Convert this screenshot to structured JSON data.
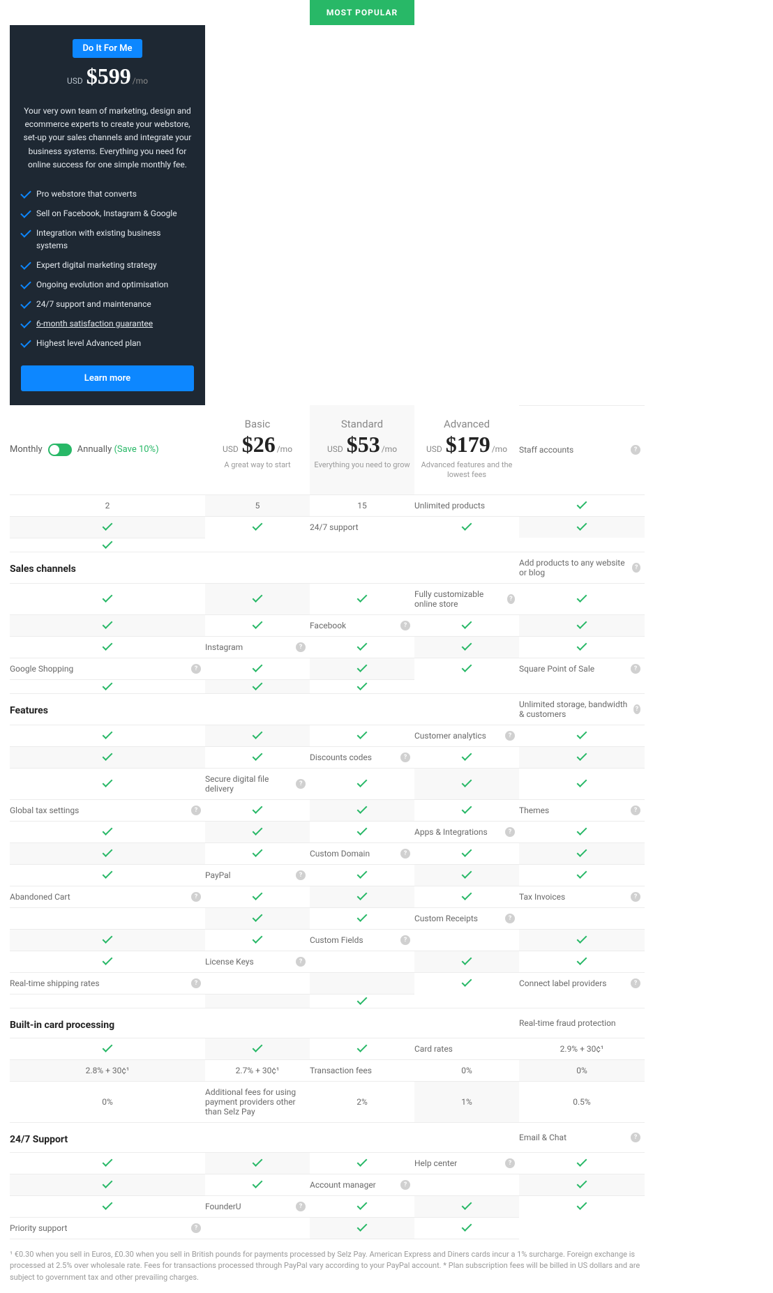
{
  "colors": {
    "accent": "#28b867",
    "dark": "#1e2833",
    "blue": "#0d87ff",
    "border": "#ececec",
    "highlight": "#f8f8f8"
  },
  "banner": "MOST POPULAR",
  "toggle": {
    "monthly": "Monthly",
    "annually": "Annually",
    "save": "(Save 10%)"
  },
  "plans": [
    {
      "name": "Basic",
      "currency": "USD",
      "price": "$26",
      "period": "/mo",
      "tagline": "A great way to start"
    },
    {
      "name": "Standard",
      "currency": "USD",
      "price": "$53",
      "period": "/mo",
      "tagline": "Everything you need to grow"
    },
    {
      "name": "Advanced",
      "currency": "USD",
      "price": "$179",
      "period": "/mo",
      "tagline": "Advanced features and the lowest fees"
    }
  ],
  "doit": {
    "button": "Do It For Me",
    "currency": "USD",
    "price": "$599",
    "period": "/mo",
    "desc": "Your very own team of marketing, design and ecommerce experts to create your webstore, set-up your sales channels and integrate your business systems. Everything you need for online success for one simple monthly fee.",
    "items": [
      "Pro webstore that converts",
      "Sell on Facebook, Instagram & Google",
      "Integration with existing business systems",
      "Expert digital marketing strategy",
      "Ongoing evolution and optimisation",
      "24/7 support and maintenance",
      "6-month satisfaction guarantee",
      "Highest level Advanced plan"
    ],
    "underlineIndex": 6,
    "learnMore": "Learn more"
  },
  "sections": [
    {
      "title": null,
      "rows": [
        {
          "label": "Staff accounts",
          "help": true,
          "vals": [
            "2",
            "5",
            "15"
          ]
        },
        {
          "label": "Unlimited products",
          "help": false,
          "vals": [
            "✓",
            "✓",
            "✓"
          ]
        },
        {
          "label": "24/7 support",
          "help": false,
          "vals": [
            "✓",
            "✓",
            "✓"
          ]
        }
      ]
    },
    {
      "title": "Sales channels",
      "rows": [
        {
          "label": "Add products to any website or blog",
          "help": true,
          "vals": [
            "✓",
            "✓",
            "✓"
          ]
        },
        {
          "label": "Fully customizable online store",
          "help": true,
          "vals": [
            "✓",
            "✓",
            "✓"
          ]
        },
        {
          "label": "Facebook",
          "help": true,
          "vals": [
            "✓",
            "✓",
            "✓"
          ]
        },
        {
          "label": "Instagram",
          "help": true,
          "vals": [
            "✓",
            "✓",
            "✓"
          ]
        },
        {
          "label": "Google Shopping",
          "help": true,
          "vals": [
            "✓",
            "✓",
            "✓"
          ]
        },
        {
          "label": "Square Point of Sale",
          "help": true,
          "vals": [
            "✓",
            "✓",
            "✓"
          ]
        }
      ]
    },
    {
      "title": "Features",
      "rows": [
        {
          "label": "Unlimited storage, bandwidth & customers",
          "help": true,
          "vals": [
            "✓",
            "✓",
            "✓"
          ]
        },
        {
          "label": "Customer analytics",
          "help": true,
          "vals": [
            "✓",
            "✓",
            "✓"
          ]
        },
        {
          "label": "Discounts codes",
          "help": true,
          "vals": [
            "✓",
            "✓",
            "✓"
          ]
        },
        {
          "label": "Secure digital file delivery",
          "help": true,
          "vals": [
            "✓",
            "✓",
            "✓"
          ]
        },
        {
          "label": "Global tax settings",
          "help": true,
          "vals": [
            "✓",
            "✓",
            "✓"
          ]
        },
        {
          "label": "Themes",
          "help": true,
          "vals": [
            "✓",
            "✓",
            "✓"
          ]
        },
        {
          "label": "Apps & Integrations",
          "help": true,
          "vals": [
            "✓",
            "✓",
            "✓"
          ]
        },
        {
          "label": "Custom Domain",
          "help": true,
          "vals": [
            "✓",
            "✓",
            "✓"
          ]
        },
        {
          "label": "PayPal",
          "help": true,
          "vals": [
            "✓",
            "✓",
            "✓"
          ]
        },
        {
          "label": "Abandoned Cart",
          "help": true,
          "vals": [
            "✓",
            "✓",
            "✓"
          ]
        },
        {
          "label": "Tax Invoices",
          "help": true,
          "vals": [
            "",
            "✓",
            "✓"
          ]
        },
        {
          "label": "Custom Receipts",
          "help": true,
          "vals": [
            "",
            "✓",
            "✓"
          ]
        },
        {
          "label": "Custom Fields",
          "help": true,
          "vals": [
            "",
            "✓",
            "✓"
          ]
        },
        {
          "label": "License Keys",
          "help": true,
          "vals": [
            "",
            "✓",
            "✓"
          ]
        },
        {
          "label": "Real-time shipping rates",
          "help": true,
          "vals": [
            "",
            "",
            "✓"
          ]
        },
        {
          "label": "Connect label providers",
          "help": true,
          "vals": [
            "",
            "",
            "✓"
          ]
        }
      ]
    },
    {
      "title": "Built-in card processing",
      "rows": [
        {
          "label": "Real-time fraud protection",
          "help": false,
          "vals": [
            "✓",
            "✓",
            "✓"
          ]
        },
        {
          "label": "Card rates",
          "help": false,
          "vals": [
            "2.9% + 30¢¹",
            "2.8% + 30¢¹",
            "2.7% + 30¢¹"
          ]
        },
        {
          "label": "Transaction fees",
          "help": false,
          "vals": [
            "0%",
            "0%",
            "0%"
          ]
        },
        {
          "label": "Additional fees for using payment providers other than Selz Pay",
          "help": false,
          "vals": [
            "2%",
            "1%",
            "0.5%"
          ]
        }
      ]
    },
    {
      "title": "24/7 Support",
      "rows": [
        {
          "label": "Email & Chat",
          "help": true,
          "vals": [
            "✓",
            "✓",
            "✓"
          ]
        },
        {
          "label": "Help center",
          "help": true,
          "vals": [
            "✓",
            "✓",
            "✓"
          ]
        },
        {
          "label": "Account manager",
          "help": true,
          "vals": [
            "",
            "✓",
            "✓"
          ]
        },
        {
          "label": "FounderU",
          "help": true,
          "vals": [
            "✓",
            "✓",
            "✓"
          ]
        },
        {
          "label": "Priority support",
          "help": true,
          "vals": [
            "",
            "✓",
            "✓"
          ]
        }
      ]
    }
  ],
  "footnote": "¹ €0.30 when you sell in Euros, £0.30 when you sell in British pounds for payments processed by Selz Pay. American Express and Diners cards incur a 1% surcharge. Foreign exchange is processed at 2.5% over wholesale rate. Fees for transactions processed through PayPal vary according to your PayPal account. * Plan subscription fees will be billed in US dollars and are subject to government tax and other prevailing charges."
}
